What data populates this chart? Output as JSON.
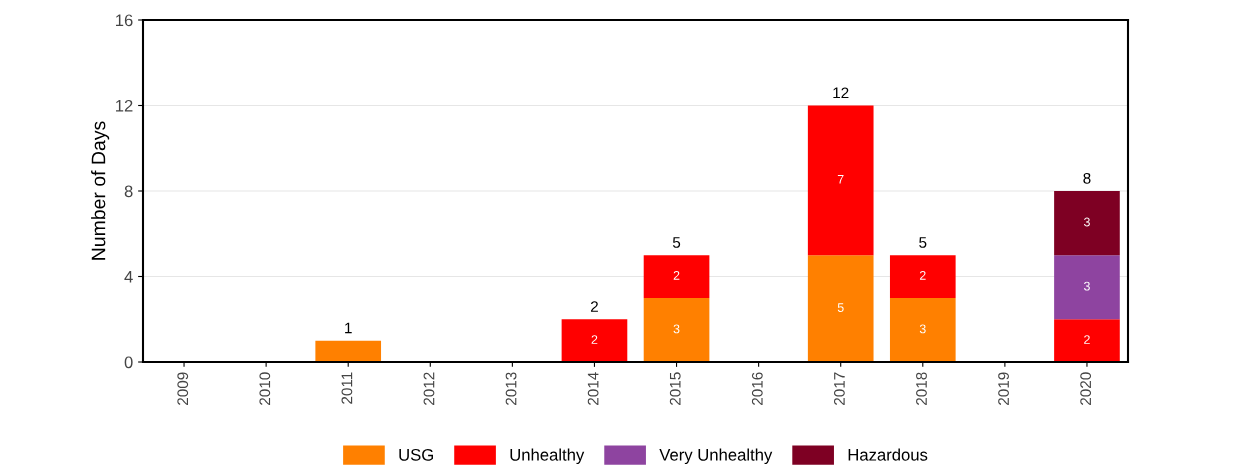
{
  "chart_data": {
    "type": "bar",
    "stacked": true,
    "ylabel": "Number of Days",
    "categories": [
      "2009",
      "2010",
      "2011",
      "2012",
      "2013",
      "2014",
      "2015",
      "2016",
      "2017",
      "2018",
      "2019",
      "2020"
    ],
    "series": [
      {
        "name": "USG",
        "color": "#ff8000",
        "values": [
          0,
          0,
          1,
          0,
          0,
          0,
          3,
          0,
          5,
          3,
          0,
          0
        ],
        "value_labels": [
          null,
          null,
          null,
          null,
          null,
          null,
          "3",
          null,
          "5",
          "3",
          null,
          null
        ]
      },
      {
        "name": "Unhealthy",
        "color": "#ff0000",
        "values": [
          0,
          0,
          0,
          0,
          0,
          2,
          2,
          0,
          7,
          2,
          0,
          2
        ],
        "value_labels": [
          null,
          null,
          null,
          null,
          null,
          "2",
          "2",
          null,
          "7",
          "2",
          null,
          "2"
        ]
      },
      {
        "name": "Very Unhealthy",
        "color": "#8e44a0",
        "values": [
          0,
          0,
          0,
          0,
          0,
          0,
          0,
          0,
          0,
          0,
          0,
          3
        ],
        "value_labels": [
          null,
          null,
          null,
          null,
          null,
          null,
          null,
          null,
          null,
          null,
          null,
          "3"
        ]
      },
      {
        "name": "Hazardous",
        "color": "#7e0023",
        "values": [
          0,
          0,
          0,
          0,
          0,
          0,
          0,
          0,
          0,
          0,
          0,
          3
        ],
        "value_labels": [
          null,
          null,
          null,
          null,
          null,
          null,
          null,
          null,
          null,
          null,
          null,
          "3"
        ]
      }
    ],
    "totals": [
      null,
      null,
      "1",
      null,
      null,
      "2",
      "5",
      null,
      "12",
      "5",
      null,
      "8"
    ],
    "ylim": [
      0,
      16
    ],
    "yticks": [
      0,
      4,
      8,
      12,
      16
    ],
    "grid": "y",
    "legend": "bottom"
  }
}
